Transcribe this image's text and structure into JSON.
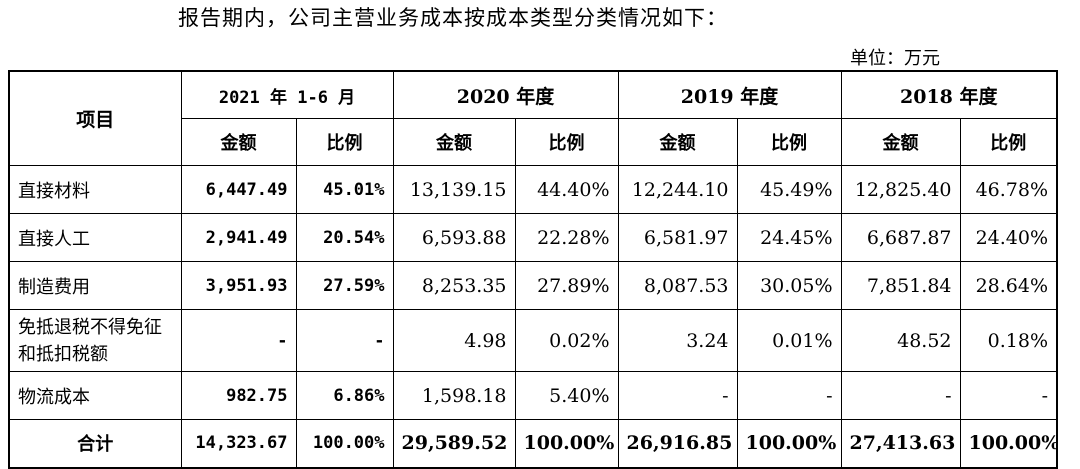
{
  "intro": "报告期内，公司主营业务成本按成本类型分类情况如下：",
  "unit": "单位：万元",
  "table": {
    "item_header": "项目",
    "periods": [
      "2021 年 1-6 月",
      "2020 年度",
      "2019 年度",
      "2018 年度"
    ],
    "sub_amount": "金额",
    "sub_ratio": "比例",
    "rows": [
      {
        "item": "直接材料",
        "cells": [
          "6,447.49",
          "45.01%",
          "13,139.15",
          "44.40%",
          "12,244.10",
          "45.49%",
          "12,825.40",
          "46.78%"
        ]
      },
      {
        "item": "直接人工",
        "cells": [
          "2,941.49",
          "20.54%",
          "6,593.88",
          "22.28%",
          "6,581.97",
          "24.45%",
          "6,687.87",
          "24.40%"
        ]
      },
      {
        "item": "制造费用",
        "cells": [
          "3,951.93",
          "27.59%",
          "8,253.35",
          "27.89%",
          "8,087.53",
          "30.05%",
          "7,851.84",
          "28.64%"
        ]
      },
      {
        "item": "免抵退税不得免征和抵扣税额",
        "cells": [
          "-",
          "-",
          "4.98",
          "0.02%",
          "3.24",
          "0.01%",
          "48.52",
          "0.18%"
        ]
      },
      {
        "item": "物流成本",
        "cells": [
          "982.75",
          "6.86%",
          "1,598.18",
          "5.40%",
          "-",
          "-",
          "-",
          "-"
        ]
      }
    ],
    "total": {
      "item": "合计",
      "cells": [
        "14,323.67",
        "100.00%",
        "29,589.52",
        "100.00%",
        "26,916.85",
        "100.00%",
        "27,413.63",
        "100.00%"
      ]
    }
  }
}
